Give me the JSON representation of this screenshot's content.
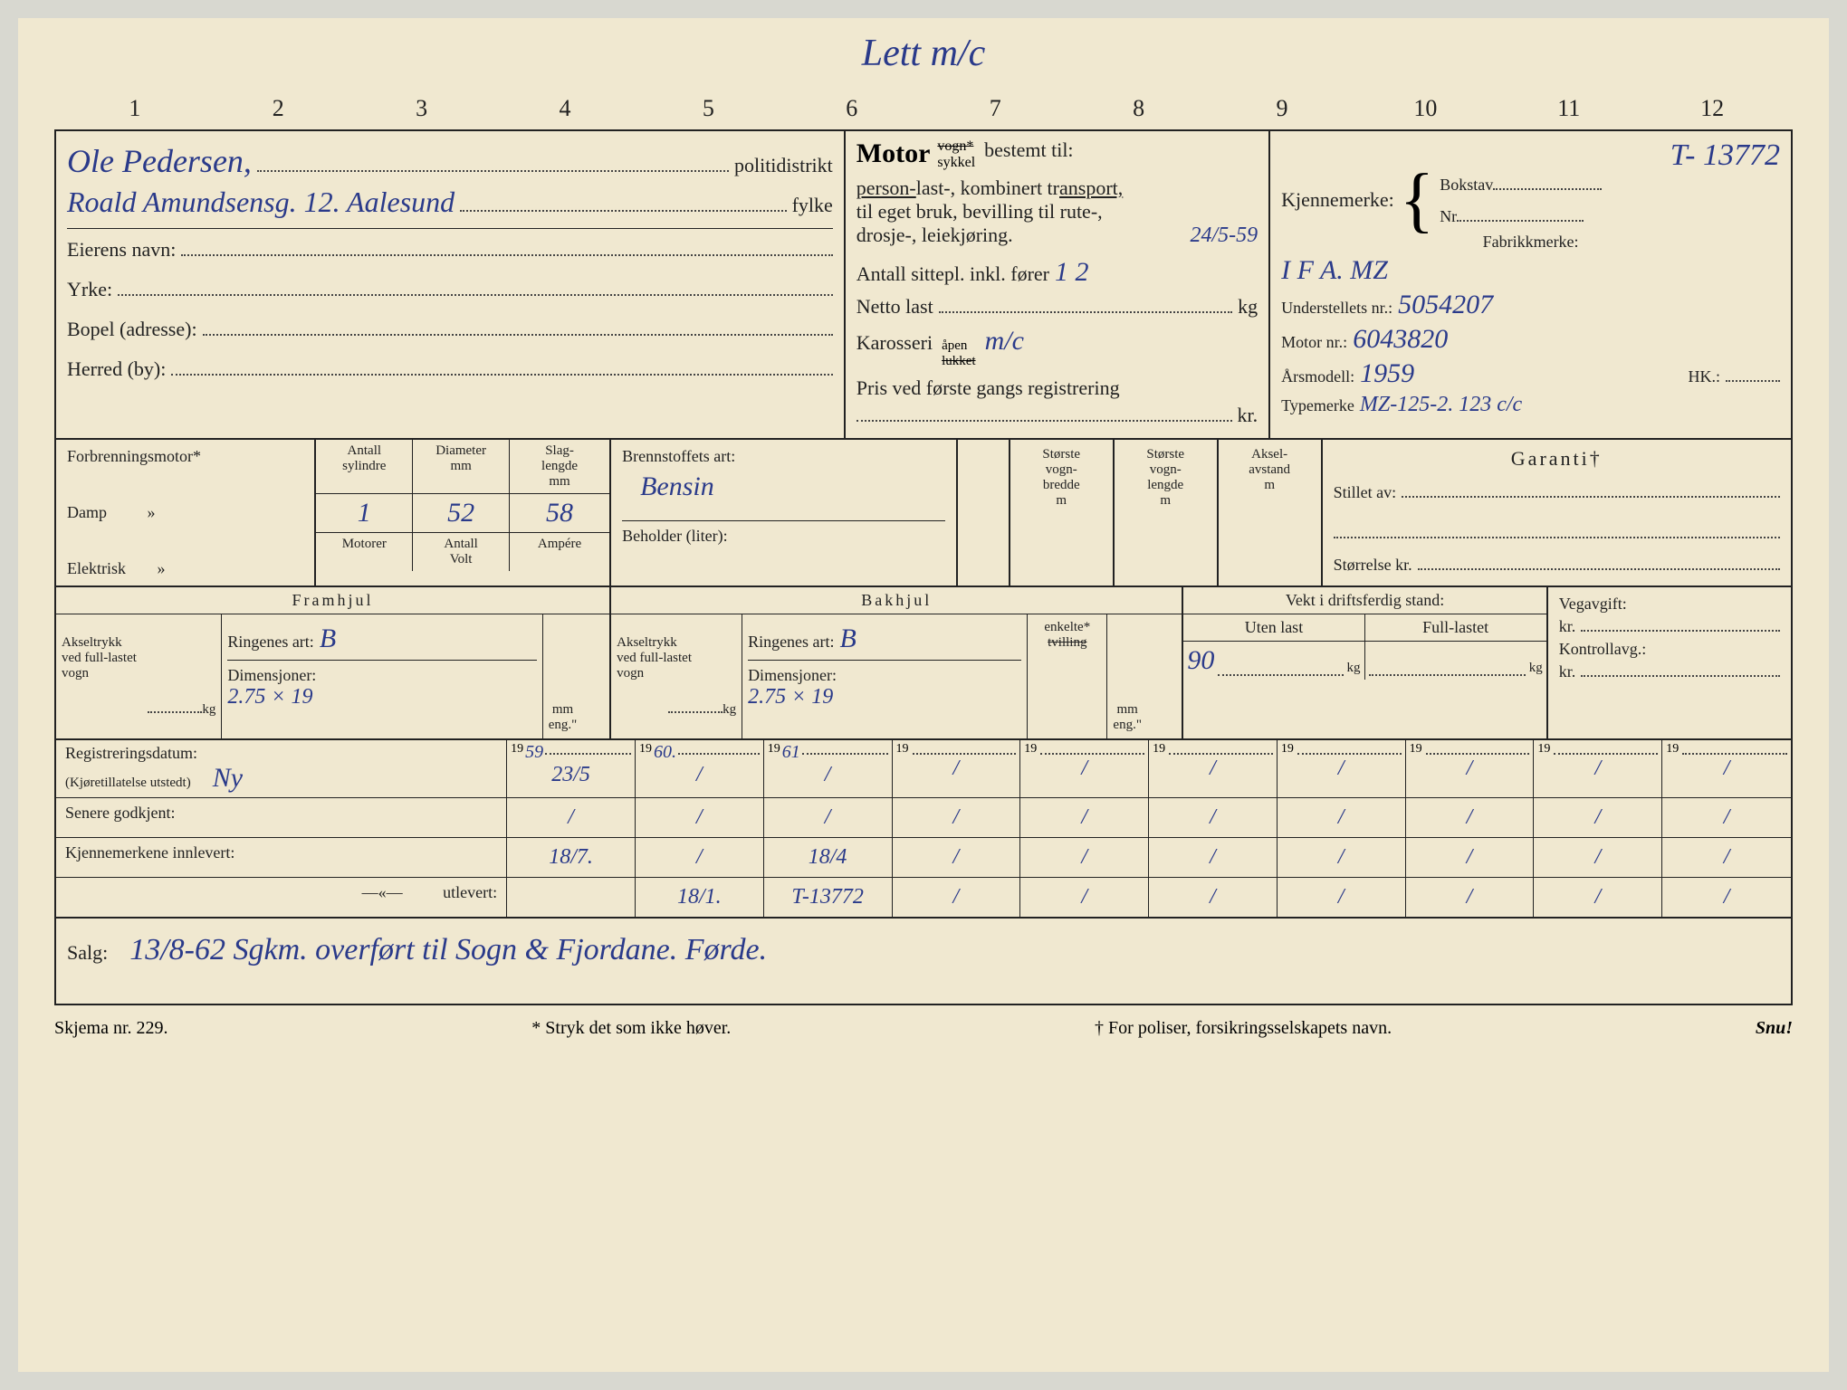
{
  "colors": {
    "paper": "#f0e8d0",
    "ink_print": "#222222",
    "ink_hand": "#2a3a8a",
    "page_bg": "#d8d8d0"
  },
  "top_annotation": "Lett m/c",
  "ruler": [
    "1",
    "2",
    "3",
    "4",
    "5",
    "6",
    "7",
    "8",
    "9",
    "10",
    "11",
    "12"
  ],
  "header": {
    "name_hand": "Ole Pedersen,",
    "address_hand": "Roald Amundsensg. 12. Aalesund",
    "politidistrikt_label": "politidistrikt",
    "fylke_label": "fylke",
    "eierens_navn": "Eierens navn:",
    "yrke": "Yrke:",
    "bopel": "Bopel (adresse):",
    "herred": "Herred (by):"
  },
  "motor": {
    "title": "Motor",
    "vogn_strike": "vogn*",
    "sykkel": "sykkel",
    "bestemt": "bestemt til:",
    "line1_parts": [
      "person-",
      "last-, kombinert tr",
      "ansport,"
    ],
    "line2": "til eget bruk, bevilling til rute-,",
    "line3": "drosje-, leiekjøring.",
    "line3_hand": "24/5-59",
    "seats_label": "Antall sittepl. inkl. fører",
    "seats_hand": "1 2",
    "netto_label": "Netto last",
    "netto_unit": "kg",
    "karosseri_label": "Karosseri",
    "karosseri_apen": "åpen",
    "karosseri_lukket": "lukket",
    "karosseri_hand": "m/c",
    "pris_label": "Pris ved første gangs registrering",
    "pris_unit": "kr."
  },
  "kjennemerke": {
    "label": "Kjennemerke:",
    "top_hand": "T- 13772",
    "bokstav": "Bokstav",
    "nr": "Nr",
    "fabrikkmerke_label": "Fabrikkmerke:",
    "fabrikkmerke_hand": "I F A.     MZ",
    "understell_label": "Understellets nr.:",
    "understell_hand": "5054207",
    "motornr_label": "Motor nr.:",
    "motornr_hand": "6043820",
    "arsmodell_label": "Årsmodell:",
    "arsmodell_hand": "1959",
    "hk_label": "HK.:",
    "typemerke_label": "Typemerke",
    "typemerke_hand": "MZ-125-2.  123 c/c"
  },
  "engine": {
    "forbrenningsmotor": "Forbrenningsmotor*",
    "damp": "Damp",
    "elektrisk": "Elektrisk",
    "ditto": "»",
    "antall_syl": "Antall\nsylindre",
    "diameter": "Diameter\nmm",
    "slaglengde": "Slag-\nlengde\nmm",
    "syl_hand": "1",
    "dia_hand": "52",
    "slag_hand": "58",
    "motorer": "Motorer",
    "antall": "Antall",
    "volt": "Volt",
    "ampere": "Ampére",
    "brennstoff": "Brennstoffets art:",
    "brennstoff_hand": "Bensin",
    "beholder": "Beholder (liter):",
    "vogn_bredde": "Største\nvogn-\nbredde\nm",
    "vogn_lengde": "Største\nvogn-\nlengde\nm",
    "aksel_avstand": "Aksel-\navstand\nm",
    "garanti": "Garanti†",
    "stillet": "Stillet av:",
    "storrelse": "Størrelse kr."
  },
  "wheels": {
    "framhjul": "Framhjul",
    "bakhjul": "Bakhjul",
    "akseltrykk": "Akseltrykk\nved full-lastet\nvogn",
    "kg": "kg",
    "ringenes_art": "Ringenes art:",
    "ring_fram_hand": "B",
    "ring_bak_hand": "B",
    "dimensjoner": "Dimensjoner:",
    "dim_fram_hand": "2.75  ×  19",
    "dim_bak_hand": "2.75  ×    19",
    "mm_eng": "mm\neng.\"",
    "enkelte": "enkelte*",
    "tvilling": "tvilling",
    "vekt_label": "Vekt i driftsferdig stand:",
    "uten_last": "Uten last",
    "full_lastet": "Full-lastet",
    "uten_hand": "90",
    "vegavgift": "Vegavgift:",
    "kr": "kr.",
    "kontrollavg": "Kontrollavg.:"
  },
  "dates": {
    "registreringsdatum": "Registreringsdatum:",
    "kjoretillatelse": "(Kjøretillatelse utstedt)",
    "reg_hand": "Ny",
    "senere": "Senere godkjent:",
    "innlevert": "Kjennemerkene innlevert:",
    "utlevert": "utlevert:",
    "ditto_dash": "—«—",
    "years": [
      "59",
      "60.",
      "61",
      "",
      "",
      "",
      "",
      "",
      "",
      ""
    ],
    "year_prefix": "19",
    "reg_cells": [
      "23/5",
      "/",
      "/",
      "/",
      "/",
      "/",
      "/",
      "/",
      "/",
      "/"
    ],
    "senere_cells": [
      "/",
      "/",
      "/",
      "/",
      "/",
      "/",
      "/",
      "/",
      "/",
      "/"
    ],
    "innlevert_cells": [
      "18/7.",
      "/",
      "18/4",
      "/",
      "/",
      "/",
      "/",
      "/",
      "/",
      "/"
    ],
    "utlevert_cells": [
      "",
      "18/1.",
      "T-13772",
      "/",
      "/",
      "/",
      "/",
      "/",
      "/",
      "/"
    ],
    "utlevert_top": "T-13772"
  },
  "salg": {
    "label": "Salg:",
    "hand": "13/8-62 Sgkm. overført til Sogn & Fjordane. Førde."
  },
  "footer": {
    "skjema": "Skjema nr. 229.",
    "stryk": "* Stryk det som ikke høver.",
    "poliser": "† For poliser, forsikringsselskapets navn.",
    "snu": "Snu!"
  }
}
